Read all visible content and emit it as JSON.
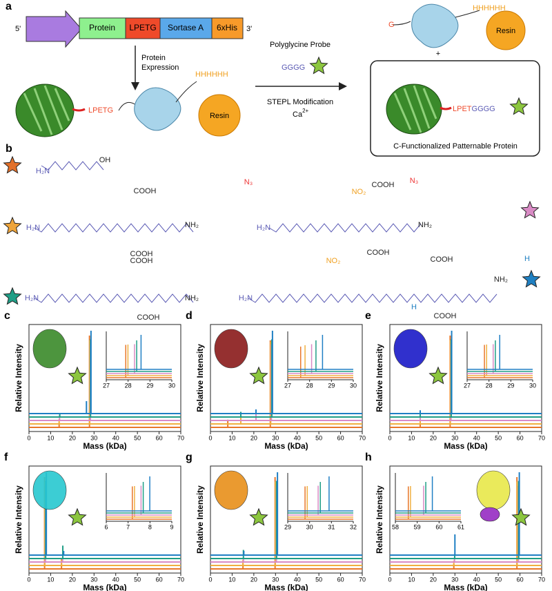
{
  "panel_a": {
    "label": "a",
    "five_prime": "5'",
    "segments": [
      "Protein",
      "LPETG",
      "Sortase A",
      "6xHis"
    ],
    "three_prime": "3'",
    "expression": [
      "Protein",
      "Expression"
    ],
    "probe": "Polyglycine Probe",
    "gggg": "GGGG",
    "modification": "STEPL Modification",
    "calcium": "Ca",
    "calcium_charge": "2+",
    "lpetg": "LPETG",
    "his": "HHHHHH",
    "resin": "Resin",
    "g": "G",
    "plus": "+",
    "lpet": "LPET",
    "product_gggg": "GGGG",
    "his2": "HHHHHH",
    "resin2": "Resin",
    "caption": "C-Functionalized Patternable Protein"
  },
  "panel_b": {
    "label": "b",
    "molecules": [
      {
        "color": "#e2702a",
        "labels": [
          "H₂N",
          "OH"
        ]
      },
      {
        "color": "#eea43a",
        "labels": [
          "H₂N",
          "COOH",
          "COOH",
          "NH₂",
          "N₃"
        ]
      },
      {
        "color": "#d98bc5",
        "labels": [
          "H₂N",
          "COOH",
          "COOH",
          "NH₂",
          "NO₂",
          "N₃"
        ]
      },
      {
        "color": "#1f9e86",
        "labels": [
          "H₂N",
          "COOH",
          "COOH",
          "NH₂",
          "H"
        ]
      },
      {
        "color": "#1f80c2",
        "labels": [
          "H₂N",
          "NO₂",
          "COOH",
          "COOH",
          "NH₂",
          "H"
        ]
      }
    ]
  },
  "chart_data": [
    {
      "type": "spectrum",
      "label": "c",
      "x_label": "Mass (kDa)",
      "y_label": "Relative Intensity",
      "xlim": [
        0,
        70
      ],
      "xticks": [
        0,
        10,
        20,
        30,
        40,
        50,
        60,
        70
      ],
      "ylim": [
        0,
        1
      ],
      "inset_xlim": [
        27,
        30
      ],
      "inset_xticks": [
        27,
        28,
        29,
        30
      ],
      "series": [
        {
          "color": "#e8772a",
          "x": [
            13.9,
            27.9
          ],
          "values": [
            0.05,
            0.95
          ]
        },
        {
          "color": "#f0b040",
          "x": [
            13.9,
            28.0
          ],
          "values": [
            0.05,
            0.9
          ]
        },
        {
          "color": "#d98bc5",
          "x": [
            14.1,
            28.3
          ],
          "values": [
            0.06,
            0.85
          ]
        },
        {
          "color": "#1f9e86",
          "x": [
            14.2,
            28.4
          ],
          "values": [
            0.04,
            0.9
          ]
        },
        {
          "color": "#1f7fc4",
          "x": [
            26.5,
            28.6
          ],
          "values": [
            0.15,
            1.0
          ]
        }
      ]
    },
    {
      "type": "spectrum",
      "label": "d",
      "x_label": "Mass (kDa)",
      "y_label": "Relative Intensity",
      "xlim": [
        0,
        70
      ],
      "xticks": [
        0,
        10,
        20,
        30,
        40,
        50,
        60,
        70
      ],
      "ylim": [
        0,
        1
      ],
      "inset_xlim": [
        27,
        30
      ],
      "inset_xticks": [
        27,
        28,
        29,
        30
      ],
      "series": [
        {
          "color": "#e8772a",
          "x": [
            8,
            27.6
          ],
          "values": [
            0.08,
            0.9
          ]
        },
        {
          "color": "#f0b040",
          "x": [
            14,
            27.8
          ],
          "values": [
            0.08,
            0.88
          ]
        },
        {
          "color": "#d98bc5",
          "x": [
            21,
            28.1
          ],
          "values": [
            0.07,
            0.85
          ]
        },
        {
          "color": "#1f9e86",
          "x": [
            14,
            28.3
          ],
          "values": [
            0.06,
            0.9
          ]
        },
        {
          "color": "#1f7fc4",
          "x": [
            21,
            28.6
          ],
          "values": [
            0.05,
            1.0
          ]
        }
      ]
    },
    {
      "type": "spectrum",
      "label": "e",
      "x_label": "Mass (kDa)",
      "y_label": "Relative Intensity",
      "xlim": [
        0,
        70
      ],
      "xticks": [
        0,
        10,
        20,
        30,
        40,
        50,
        60,
        70
      ],
      "ylim": [
        0,
        1
      ],
      "inset_xlim": [
        27,
        30
      ],
      "inset_xticks": [
        27,
        28,
        29,
        30
      ],
      "series": [
        {
          "color": "#e8772a",
          "x": [
            14,
            27.8
          ],
          "values": [
            0.05,
            0.95
          ]
        },
        {
          "color": "#f0b040",
          "x": [
            14,
            27.9
          ],
          "values": [
            0.05,
            0.9
          ]
        },
        {
          "color": "#d98bc5",
          "x": [
            14,
            28.2
          ],
          "values": [
            0.05,
            0.85
          ]
        },
        {
          "color": "#1f9e86",
          "x": [
            14,
            28.3
          ],
          "values": [
            0.04,
            0.9
          ]
        },
        {
          "color": "#1f7fc4",
          "x": [
            14,
            28.5
          ],
          "values": [
            0.04,
            1.0
          ]
        }
      ]
    },
    {
      "type": "spectrum",
      "label": "f",
      "x_label": "Mass (kDa)",
      "y_label": "Relative Intensity",
      "xlim": [
        0,
        70
      ],
      "xticks": [
        0,
        10,
        20,
        30,
        40,
        50,
        60,
        70
      ],
      "ylim": [
        0,
        1
      ],
      "inset_xlim": [
        6,
        9
      ],
      "inset_xticks": [
        6,
        7,
        8,
        9
      ],
      "series": [
        {
          "color": "#e8772a",
          "x": [
            7.2,
            15
          ],
          "values": [
            0.95,
            0.1
          ]
        },
        {
          "color": "#f0b040",
          "x": [
            7.3,
            15
          ],
          "values": [
            0.9,
            0.06
          ]
        },
        {
          "color": "#d98bc5",
          "x": [
            7.6,
            15.5
          ],
          "values": [
            0.85,
            0.05
          ]
        },
        {
          "color": "#1f9e86",
          "x": [
            7.7,
            15.6
          ],
          "values": [
            0.9,
            0.15
          ]
        },
        {
          "color": "#1f7fc4",
          "x": [
            8.0,
            16
          ],
          "values": [
            1.0,
            0.05
          ]
        }
      ]
    },
    {
      "type": "spectrum",
      "label": "g",
      "x_label": "Mass (kDa)",
      "y_label": "Relative Intensity",
      "xlim": [
        0,
        70
      ],
      "xticks": [
        0,
        10,
        20,
        30,
        40,
        50,
        60,
        70
      ],
      "ylim": [
        0,
        1
      ],
      "inset_xlim": [
        29,
        32
      ],
      "inset_xticks": [
        29,
        30,
        31,
        32
      ],
      "series": [
        {
          "color": "#e8772a",
          "x": [
            15,
            29.8
          ],
          "values": [
            0.06,
            0.95
          ]
        },
        {
          "color": "#f0b040",
          "x": [
            15,
            29.9
          ],
          "values": [
            0.06,
            0.9
          ]
        },
        {
          "color": "#d98bc5",
          "x": [
            15.2,
            30.4
          ],
          "values": [
            0.05,
            0.85
          ]
        },
        {
          "color": "#1f9e86",
          "x": [
            15.2,
            30.5
          ],
          "values": [
            0.1,
            0.9
          ]
        },
        {
          "color": "#1f7fc4",
          "x": [
            15.4,
            30.9
          ],
          "values": [
            0.05,
            1.0
          ]
        }
      ]
    },
    {
      "type": "spectrum",
      "label": "h",
      "x_label": "Mass (kDa)",
      "y_label": "Relative Intensity",
      "xlim": [
        0,
        70
      ],
      "xticks": [
        0,
        10,
        20,
        30,
        40,
        50,
        60,
        70
      ],
      "ylim": [
        0,
        1
      ],
      "inset_xlim": [
        58,
        61
      ],
      "inset_xticks": [
        58,
        59,
        60,
        61
      ],
      "series": [
        {
          "color": "#e8772a",
          "x": [
            29.5,
            58.6
          ],
          "values": [
            0.05,
            0.95
          ]
        },
        {
          "color": "#f0b040",
          "x": [
            29.5,
            58.7
          ],
          "values": [
            0.05,
            0.9
          ]
        },
        {
          "color": "#d98bc5",
          "x": [
            29.8,
            59.3
          ],
          "values": [
            0.05,
            0.85
          ]
        },
        {
          "color": "#1f9e86",
          "x": [
            29.9,
            59.4
          ],
          "values": [
            0.05,
            0.9
          ]
        },
        {
          "color": "#1f7fc4",
          "x": [
            30.0,
            59.7
          ],
          "values": [
            0.25,
            1.0
          ]
        }
      ]
    }
  ]
}
